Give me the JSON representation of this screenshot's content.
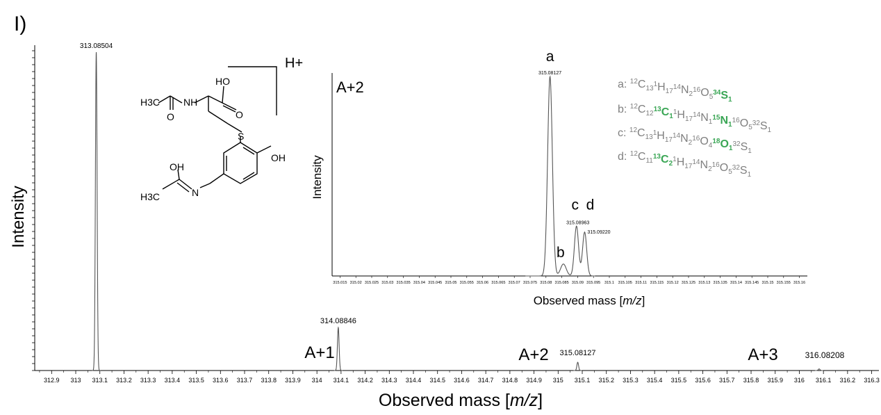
{
  "panel_label": "I)",
  "chart_data": [
    {
      "type": "line",
      "name": "main",
      "xlabel": "Observed mass [m/z]",
      "ylabel": "Intensity",
      "xlim": [
        312.83,
        316.33
      ],
      "ylim": [
        0,
        100
      ],
      "xtick_labels": [
        "312.9",
        "313",
        "313.1",
        "313.2",
        "313.3",
        "313.4",
        "313.5",
        "313.6",
        "313.7",
        "313.8",
        "313.9",
        "314",
        "314.1",
        "314.2",
        "314.3",
        "314.4",
        "314.5",
        "314.6",
        "314.7",
        "314.8",
        "314.9",
        "315",
        "315.1",
        "315.2",
        "315.3",
        "315.4",
        "315.5",
        "315.6",
        "315.7",
        "315.8",
        "315.9",
        "316",
        "316.1",
        "316.2",
        "316.3"
      ],
      "peaks": [
        {
          "x": 313.08504,
          "y": 100,
          "label": "313.08504",
          "group": ""
        },
        {
          "x": 314.08846,
          "y": 13.5,
          "label": "314.08846",
          "group": "A+1"
        },
        {
          "x": 315.08127,
          "y": 2.6,
          "label": "315.08127",
          "group": "A+2"
        },
        {
          "x": 316.08208,
          "y": 0.5,
          "label": "316.08208",
          "group": "A+3"
        }
      ],
      "annotations": [
        "A+1",
        "A+2",
        "A+3"
      ],
      "adduct": "H+"
    },
    {
      "type": "line",
      "name": "inset",
      "title": "A+2",
      "xlabel": "Observed mass [m/z]",
      "ylabel": "Intensity",
      "xlim": [
        315.0125,
        315.1625
      ],
      "ylim": [
        0,
        100
      ],
      "xtick_labels": [
        "315.015",
        "315.02",
        "315.025",
        "315.03",
        "315.035",
        "315.04",
        "315.045",
        "315.05",
        "315.055",
        "315.06",
        "315.065",
        "315.07",
        "315.075",
        "315.08",
        "315.085",
        "315.09",
        "315.095",
        "315.1",
        "315.105",
        "315.11",
        "315.115",
        "315.12",
        "315.125",
        "315.13",
        "315.135",
        "315.14",
        "315.145",
        "315.15",
        "315.155",
        "315.16"
      ],
      "peaks": [
        {
          "x": 315.08127,
          "y": 100,
          "mass_label": "315.08127",
          "letter": "a"
        },
        {
          "x": 315.0855,
          "y": 6,
          "mass_label": "",
          "letter": "b"
        },
        {
          "x": 315.08963,
          "y": 25,
          "mass_label": "315.08963",
          "letter": "c"
        },
        {
          "x": 315.0922,
          "y": 22,
          "mass_label": "315.09220",
          "letter": "d"
        }
      ],
      "formula_legend": [
        {
          "letter": "a",
          "parts": [
            [
              "12",
              "C",
              "13",
              false
            ],
            [
              "1",
              "H",
              "17",
              false
            ],
            [
              "14",
              "N",
              "2",
              false
            ],
            [
              "16",
              "O",
              "5",
              false
            ],
            [
              "34",
              "S",
              "1",
              true
            ]
          ]
        },
        {
          "letter": "b",
          "parts": [
            [
              "12",
              "C",
              "12",
              false
            ],
            [
              "13",
              "C",
              "1",
              true
            ],
            [
              "1",
              "H",
              "17",
              false
            ],
            [
              "14",
              "N",
              "1",
              false
            ],
            [
              "15",
              "N",
              "1",
              true
            ],
            [
              "16",
              "O",
              "5",
              false
            ],
            [
              "32",
              "S",
              "1",
              false
            ]
          ]
        },
        {
          "letter": "c",
          "parts": [
            [
              "12",
              "C",
              "13",
              false
            ],
            [
              "1",
              "H",
              "17",
              false
            ],
            [
              "14",
              "N",
              "2",
              false
            ],
            [
              "16",
              "O",
              "4",
              false
            ],
            [
              "18",
              "O",
              "1",
              true
            ],
            [
              "32",
              "S",
              "1",
              false
            ]
          ]
        },
        {
          "letter": "d",
          "parts": [
            [
              "12",
              "C",
              "11",
              false
            ],
            [
              "13",
              "C",
              "2",
              true
            ],
            [
              "1",
              "H",
              "17",
              false
            ],
            [
              "14",
              "N",
              "2",
              false
            ],
            [
              "16",
              "O",
              "5",
              false
            ],
            [
              "32",
              "S",
              "1",
              false
            ]
          ]
        }
      ]
    }
  ],
  "structure": {
    "atom_labels": [
      "H3C",
      "NH",
      "HO",
      "O",
      "O",
      "S",
      "OH",
      "OH",
      "N",
      "H3C"
    ]
  },
  "colors": {
    "axis": "#000000",
    "trace": "#7f7f7f",
    "legend_text": "#7f7f7f",
    "highlight": "#3aa655"
  }
}
